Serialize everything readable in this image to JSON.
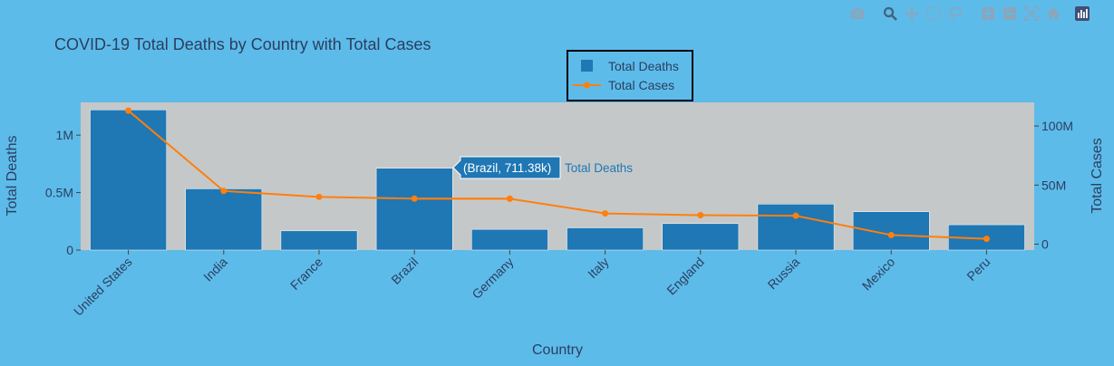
{
  "modebar": {
    "icons": [
      "camera-icon",
      "zoom-icon",
      "pan-icon",
      "box-select-icon",
      "lasso-select-icon",
      "zoom-in-icon",
      "zoom-out-icon",
      "autoscale-icon",
      "reset-axes-icon",
      "plotly-logo-icon"
    ]
  },
  "colors": {
    "paper": "#5dbbea",
    "plot": "#c5c8c9",
    "bar": "#1f77b4",
    "line": "#ff7f0e",
    "text": "#2a3f5f"
  },
  "chart_data": {
    "type": "bar",
    "title": "COVID-19 Total Deaths by Country with Total Cases",
    "xlabel": "Country",
    "ylabel": "Total Deaths",
    "y2label": "Total Cases",
    "categories": [
      "United States",
      "India",
      "France",
      "Brazil",
      "Germany",
      "Italy",
      "England",
      "Russia",
      "Mexico",
      "Peru"
    ],
    "series": [
      {
        "name": "Total Deaths",
        "type": "bar",
        "axis": "y",
        "values": [
          1220000,
          533000,
          167000,
          711380,
          180000,
          193000,
          230000,
          400000,
          333000,
          220000
        ]
      },
      {
        "name": "Total Cases",
        "type": "line",
        "axis": "y2",
        "values": [
          113000000,
          45000000,
          40000000,
          38500000,
          38400000,
          26000000,
          24500000,
          24000000,
          7700000,
          4500000
        ]
      }
    ],
    "y_ticks": [
      {
        "v": 0,
        "label": "0"
      },
      {
        "v": 500000,
        "label": "0.5M"
      },
      {
        "v": 1000000,
        "label": "1M"
      }
    ],
    "y2_ticks": [
      {
        "v": 0,
        "label": "0"
      },
      {
        "v": 50000000,
        "label": "50M"
      },
      {
        "v": 100000000,
        "label": "100M"
      }
    ],
    "ylim": [
      0,
      1285000
    ],
    "y2lim": [
      -5000000,
      120000000
    ],
    "legend": {
      "position": "top-center",
      "entries": [
        "Total Deaths",
        "Total Cases"
      ]
    },
    "hover": {
      "label": "(Brazil, 711.38k)",
      "series": "Total Deaths",
      "category": "Brazil",
      "value": 711380
    }
  }
}
